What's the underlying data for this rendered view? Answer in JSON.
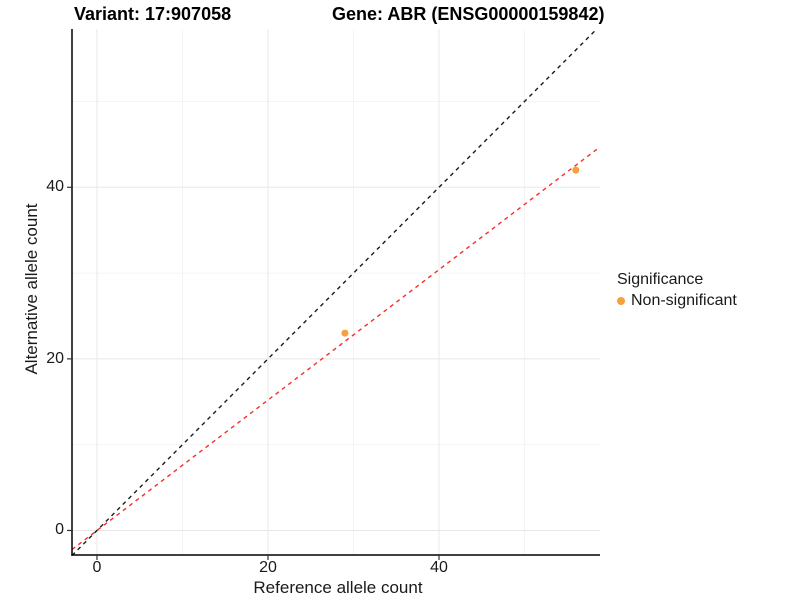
{
  "titles": {
    "variant": "Variant: 17:907058",
    "gene": "Gene: ABR (ENSG00000159842)"
  },
  "chart_data": {
    "type": "scatter",
    "xlabel": "Reference allele count",
    "ylabel": "Alternative allele count",
    "xlim": [
      -2.92,
      58.83
    ],
    "ylim": [
      -2.86,
      58.45
    ],
    "x_ticks": [
      0,
      20,
      40
    ],
    "y_ticks": [
      0,
      20,
      40
    ],
    "x_minor_ticks": [
      10,
      30,
      50
    ],
    "y_minor_ticks": [
      10,
      30,
      50
    ],
    "grid": true,
    "series": [
      {
        "name": "Non-significant",
        "color": "#F9A03C",
        "points": [
          {
            "x": 29,
            "y": 23
          },
          {
            "x": 56,
            "y": 42
          }
        ]
      }
    ],
    "lines": [
      {
        "name": "identity-line",
        "slope": 1.0,
        "intercept": 0,
        "color": "#1a1a1a",
        "dash": "4 4"
      },
      {
        "name": "fit-line",
        "slope": 0.76,
        "intercept": 0,
        "color": "#F62D2D",
        "dash": "4 4"
      }
    ],
    "legend": {
      "title": "Significance",
      "position": "right",
      "items": [
        {
          "label": "Non-significant",
          "color": "#F9A03C"
        }
      ]
    },
    "colors": {
      "axis_line": "#000000",
      "grid_major": "#E8E8E8",
      "grid_minor": "#F4F4F4",
      "tick_mark": "#333333"
    }
  }
}
